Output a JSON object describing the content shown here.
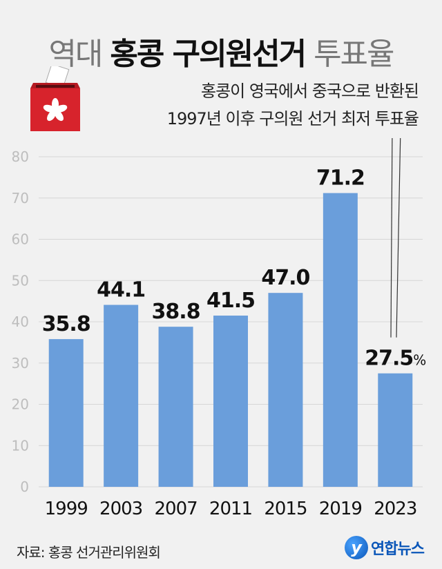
{
  "title": {
    "part1": "역대 ",
    "part2": "홍콩 구의원선거",
    "part3": " 투표율"
  },
  "subtitle": {
    "line1": "홍콩이 영국에서 중국으로 반환된",
    "line2": "1997년 이후 구의원 선거 최저 투표율"
  },
  "source": "자료: 홍콩 선거관리위원회",
  "logo": {
    "mark": "y",
    "text": "연합뉴스"
  },
  "icons": {
    "ballot": "ballot-box-hong-kong-flag-icon",
    "logo": "yonhap-logo-icon"
  },
  "colors": {
    "bar": "#6a9edb",
    "background": "#f1f1f1",
    "ballot": "#d7232c"
  },
  "chart_data": {
    "type": "bar",
    "categories": [
      "1999",
      "2003",
      "2007",
      "2011",
      "2015",
      "2019",
      "2023"
    ],
    "values": [
      35.8,
      44.1,
      38.8,
      41.5,
      47.0,
      71.2,
      27.5
    ],
    "value_labels": [
      "35.8",
      "44.1",
      "38.8",
      "41.5",
      "47.0",
      "71.2",
      "27.5"
    ],
    "last_label_unit": "%",
    "ylim": [
      0,
      80
    ],
    "yticks": [
      0,
      10,
      20,
      30,
      40,
      50,
      60,
      70,
      80
    ],
    "title": "역대 홍콩 구의원선거 투표율",
    "xlabel": "",
    "ylabel": "",
    "grid": true
  }
}
